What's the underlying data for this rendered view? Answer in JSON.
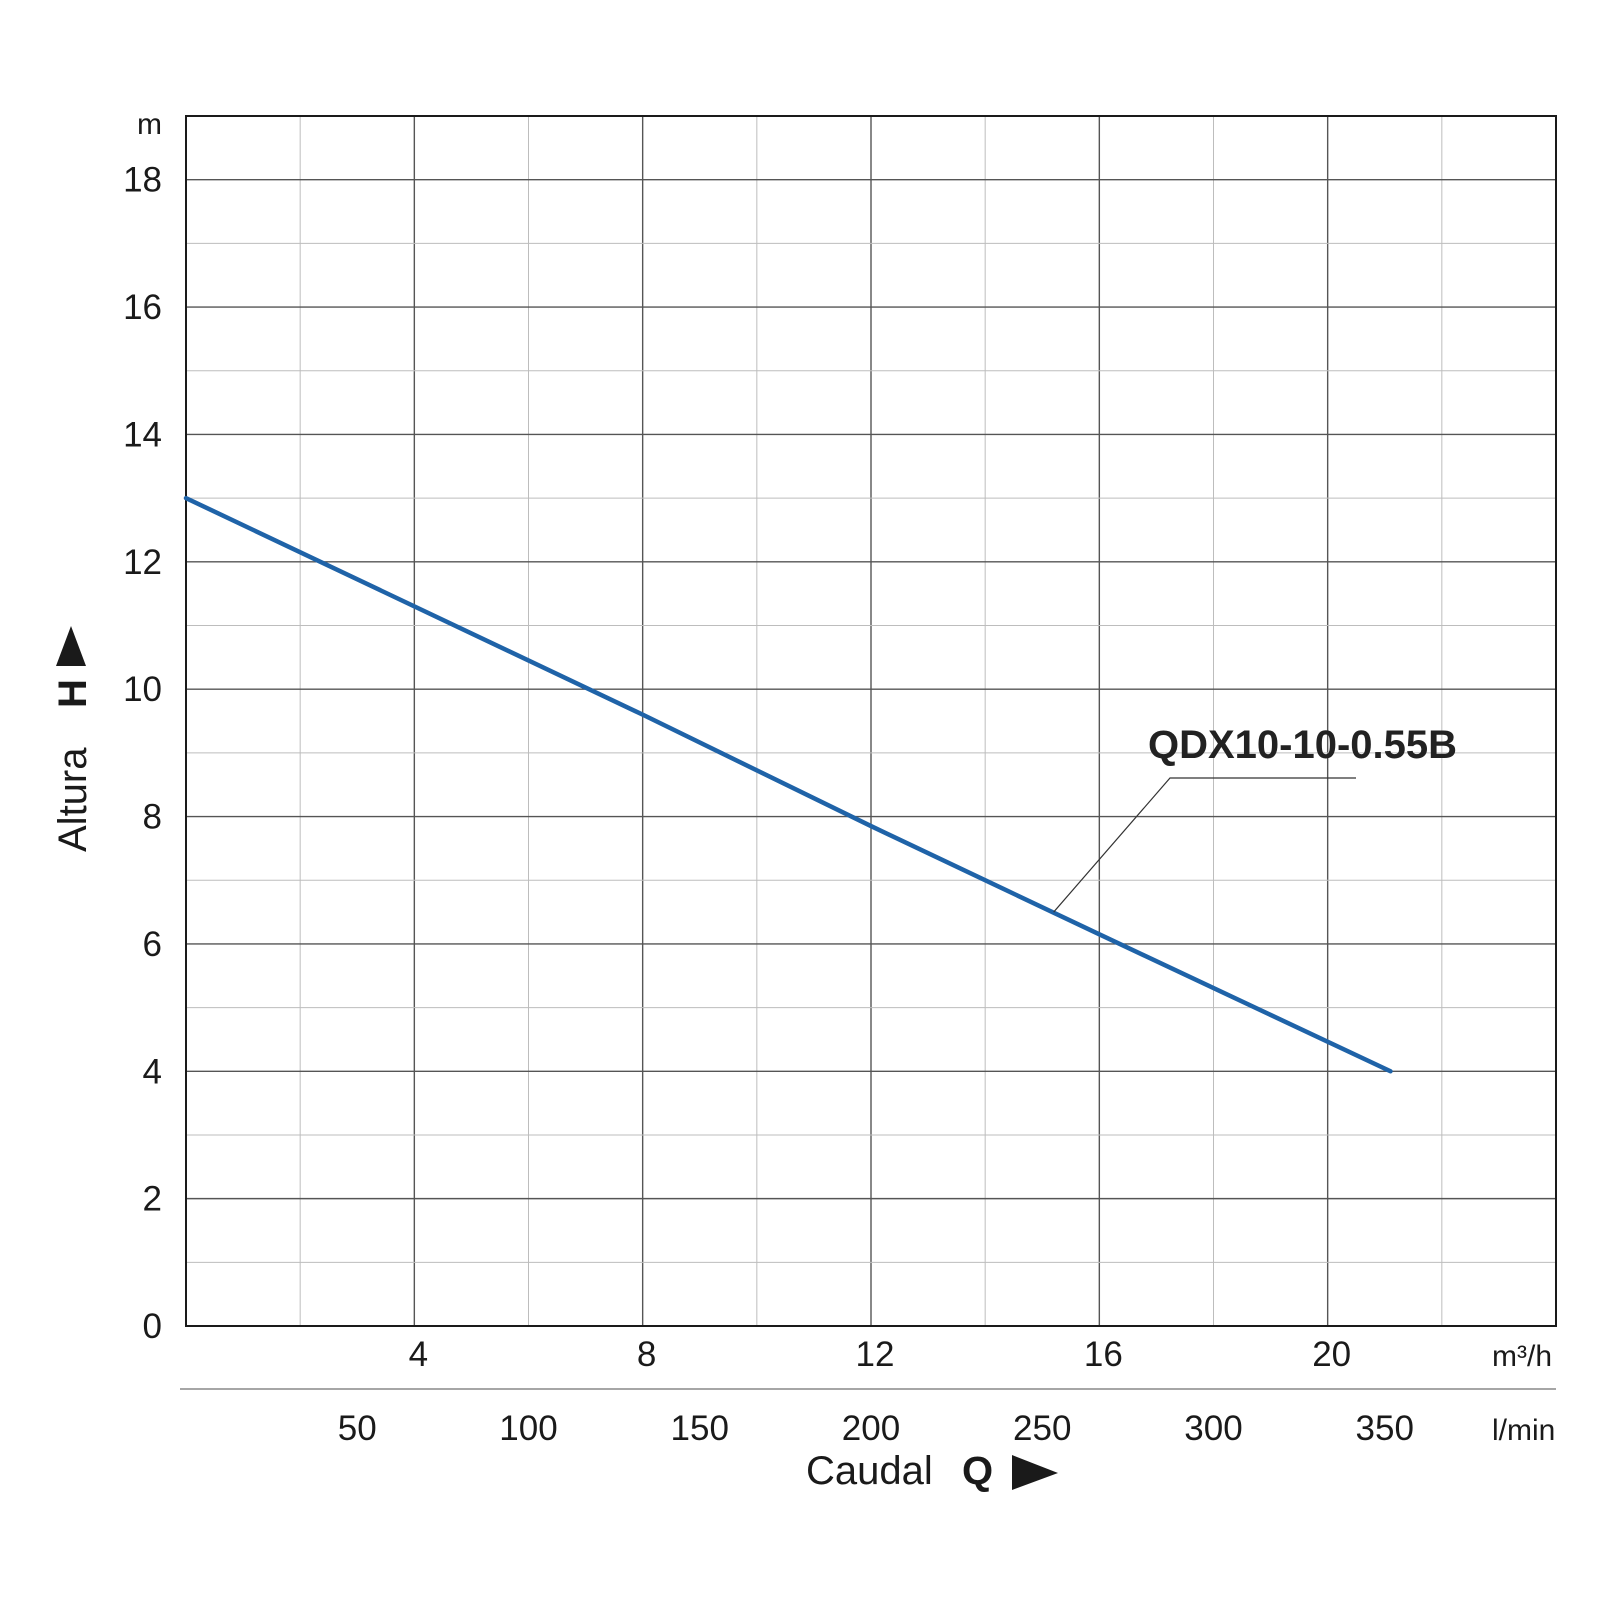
{
  "chart_data": {
    "type": "line",
    "y_axis": {
      "title": "Altura",
      "symbol": "H",
      "unit": "m",
      "ticks": [
        "0",
        "2",
        "4",
        "6",
        "8",
        "10",
        "12",
        "14",
        "16",
        "18"
      ],
      "ylim": [
        0,
        19
      ]
    },
    "x_axis": {
      "title": "Caudal",
      "symbol": "Q",
      "unit": "m³/h",
      "ticks": [
        "4",
        "8",
        "12",
        "16",
        "20"
      ],
      "xlim": [
        0,
        24
      ]
    },
    "x_axis_secondary": {
      "unit": "l/min",
      "ticks": [
        "50",
        "100",
        "150",
        "200",
        "250",
        "300",
        "350"
      ]
    },
    "grid": true,
    "series": [
      {
        "name": "QDX10-10-0.55B",
        "color": "#1f63a8",
        "x": [
          0,
          4,
          8,
          12,
          16,
          21.1
        ],
        "y": [
          13.0,
          11.3,
          9.6,
          7.85,
          6.15,
          4.0
        ]
      }
    ]
  }
}
